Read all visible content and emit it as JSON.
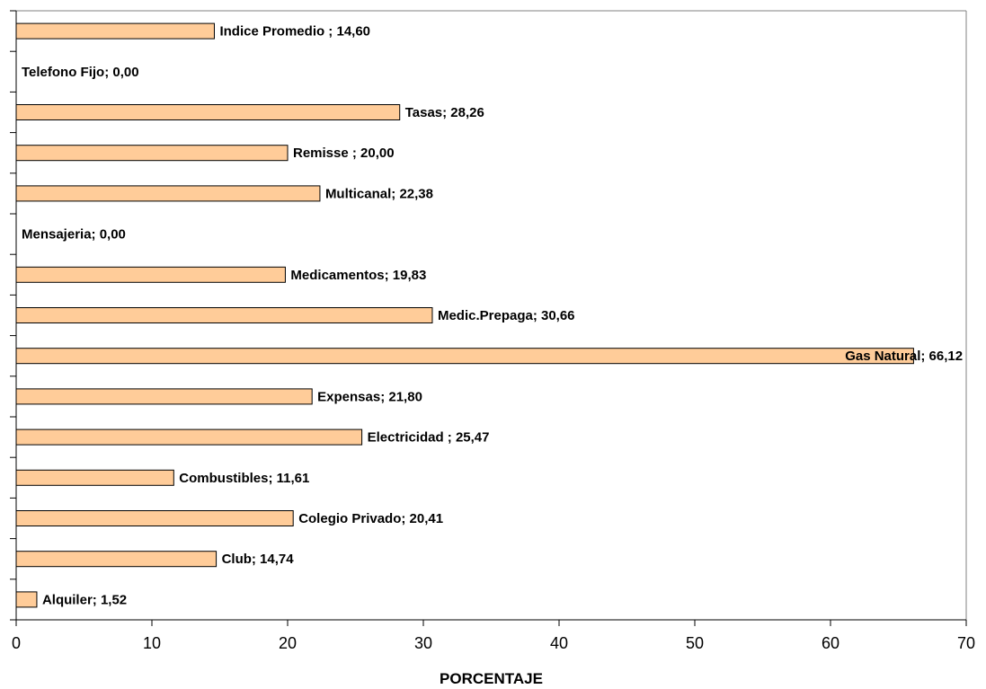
{
  "chart_data": {
    "type": "bar",
    "orientation": "horizontal",
    "categories": [
      "Alquiler",
      "Club",
      "Colegio Privado",
      "Combustibles",
      "Electricidad",
      "Expensas",
      "Gas Natural",
      "Medic.Prepaga",
      "Medicamentos",
      "Mensajeria",
      "Multicanal",
      "Remisse",
      "Tasas",
      "Telefono Fijo",
      "Indice Promedio"
    ],
    "values": [
      1.52,
      14.74,
      20.41,
      11.61,
      25.47,
      21.8,
      66.12,
      30.66,
      19.83,
      0.0,
      22.38,
      20.0,
      28.26,
      0.0,
      14.6
    ],
    "data_labels": [
      "Alquiler; 1,52",
      "Club; 14,74",
      "Colegio Privado; 20,41",
      "Combustibles; 11,61",
      "Electricidad ; 25,47",
      "Expensas; 21,80",
      "Gas Natural; 66,12",
      "Medic.Prepaga; 30,66",
      "Medicamentos; 19,83",
      "Mensajeria; 0,00",
      "Multicanal; 22,38",
      "Remisse ; 20,00",
      "Tasas; 28,26",
      "Telefono Fijo; 0,00",
      "Indice Promedio ; 14,60"
    ],
    "xlabel": "PORCENTAJE",
    "ylabel": "",
    "xlim": [
      0,
      70
    ],
    "xticks": [
      0,
      10,
      20,
      30,
      40,
      50,
      60,
      70
    ],
    "xtick_labels": [
      "0",
      "10",
      "20",
      "30",
      "40",
      "50",
      "60",
      "70"
    ],
    "bar_color": "#FFCC99",
    "bar_edge_color": "#000000",
    "grid": false,
    "legend": "none"
  }
}
